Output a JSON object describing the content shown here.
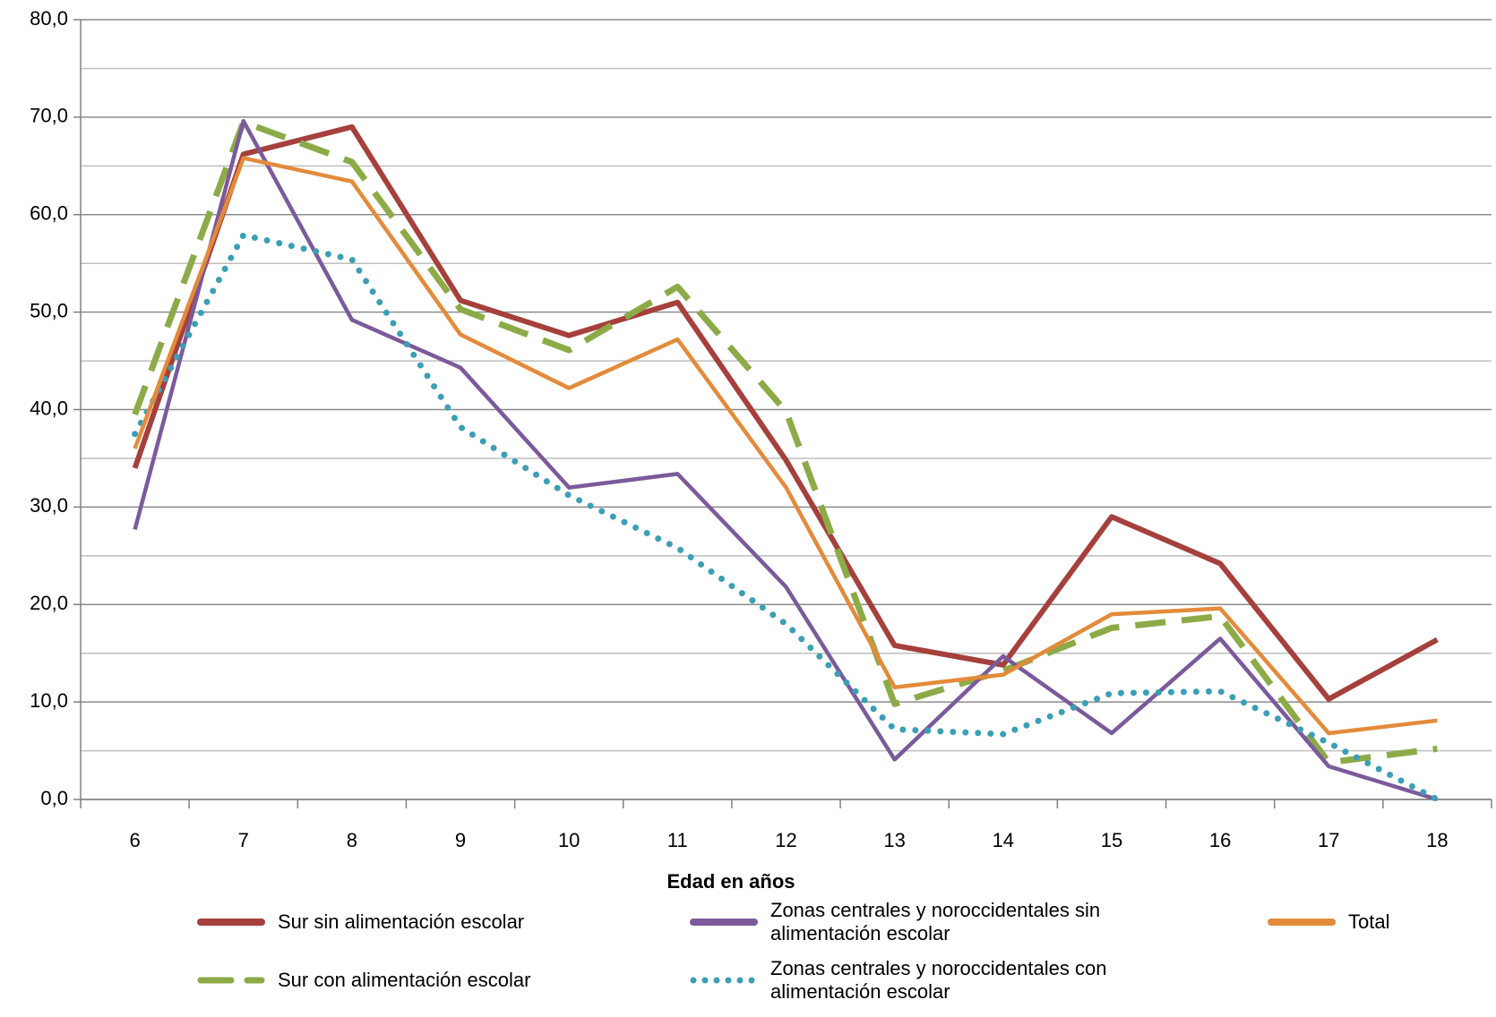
{
  "chart_data": {
    "type": "line",
    "x_label": "Edad en años",
    "categories": [
      6,
      7,
      8,
      9,
      10,
      11,
      12,
      13,
      14,
      15,
      16,
      17,
      18
    ],
    "ylim": [
      0,
      80
    ],
    "yticks": [
      {
        "value": 0,
        "label": "0,0"
      },
      {
        "value": 10,
        "label": "10,0"
      },
      {
        "value": 20,
        "label": "20,0"
      },
      {
        "value": 30,
        "label": "30,0"
      },
      {
        "value": 40,
        "label": "40,0"
      },
      {
        "value": 50,
        "label": "50,0"
      },
      {
        "value": 60,
        "label": "60,0"
      },
      {
        "value": 70,
        "label": "70,0"
      },
      {
        "value": 80,
        "label": "80,0"
      }
    ],
    "minor_yticks": [
      5,
      15,
      25,
      35,
      45,
      55,
      65,
      75
    ],
    "grid": true,
    "series": [
      {
        "name": "Sur sin alimentación escolar",
        "color": "#a5403c",
        "style": "solid",
        "values": [
          34,
          66.2,
          69,
          51.2,
          47.6,
          51,
          34.8,
          15.8,
          13.8,
          29,
          24.2,
          10.3,
          16.4
        ]
      },
      {
        "name": "Sur con alimentación escolar",
        "color": "#8cab48",
        "style": "dashed",
        "values": [
          39.5,
          69.5,
          65.4,
          50.3,
          46.1,
          52.6,
          39.8,
          9.8,
          13.2,
          17.6,
          18.8,
          3.8,
          5.2
        ]
      },
      {
        "name": "Zonas centrales y noroccidentales sin alimentación escolar",
        "color": "#7b5a9b",
        "style": "solid",
        "values": [
          27.7,
          69.6,
          49.2,
          44.3,
          32,
          33.4,
          21.8,
          4.1,
          14.7,
          6.8,
          16.5,
          3.4,
          0
        ]
      },
      {
        "name": "Zonas centrales y noroccidentales con alimentación escolar",
        "color": "#3b9fb5",
        "style": "dotted",
        "values": [
          37.5,
          57.9,
          55.4,
          38.2,
          31.2,
          25.8,
          18,
          7.2,
          6.7,
          10.9,
          11.1,
          5.8,
          0
        ]
      },
      {
        "name": "Total",
        "color": "#e38b3b",
        "style": "solid",
        "values": [
          36,
          65.8,
          63.4,
          47.7,
          42.2,
          47.2,
          32,
          11.5,
          12.8,
          19,
          19.6,
          6.8,
          8.1
        ]
      }
    ]
  }
}
